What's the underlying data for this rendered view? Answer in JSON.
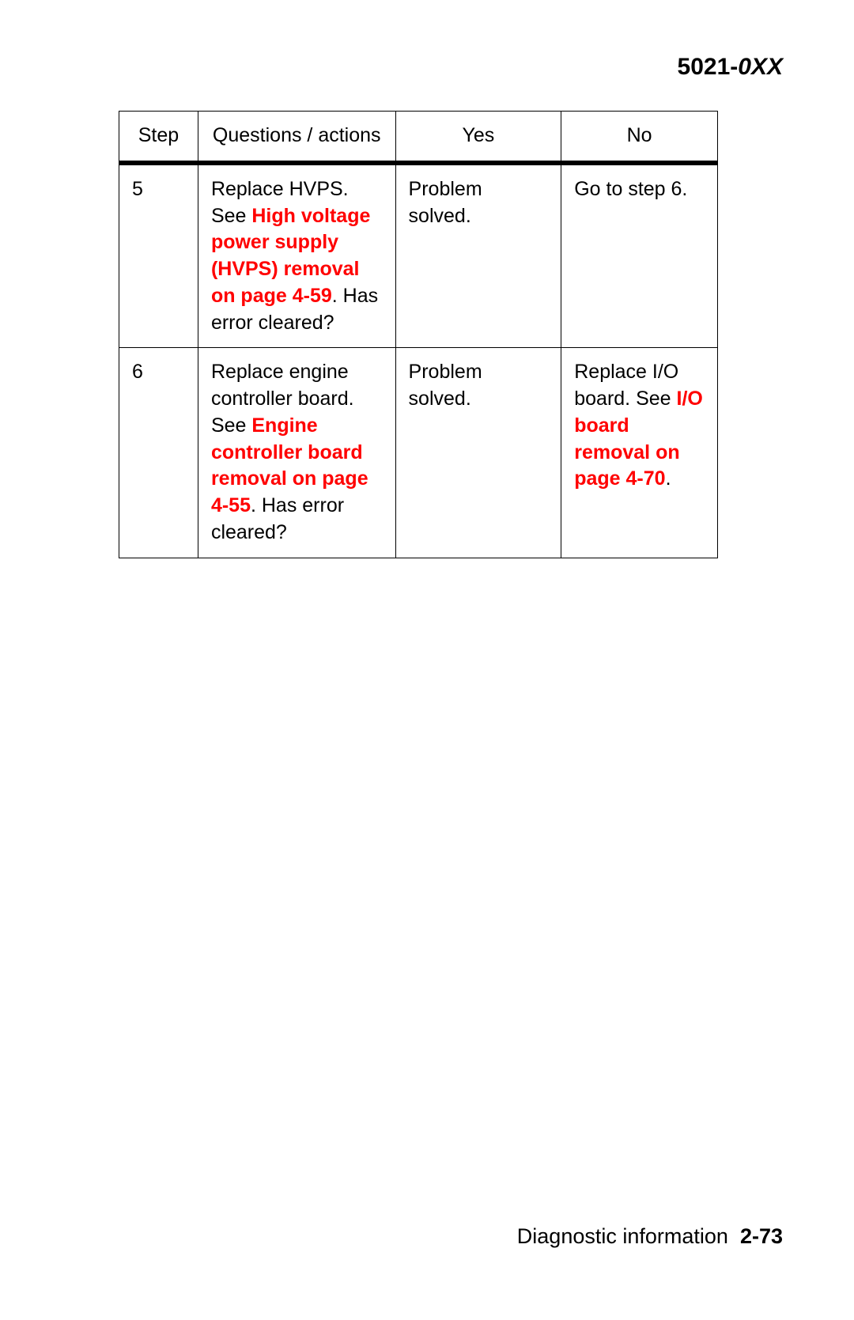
{
  "header": {
    "model_prefix": "5021-",
    "model_suffix": "0XX"
  },
  "table": {
    "columns": {
      "step": "Step",
      "qa": "Questions / actions",
      "yes": "Yes",
      "no": "No"
    },
    "rows": [
      {
        "step": "5",
        "qa_before": "Replace HVPS. See ",
        "qa_link": "High voltage power supply (HVPS) removal on page 4-59",
        "qa_after": ". Has error cleared?",
        "yes": "Problem solved.",
        "no_before": "Go to step 6.",
        "no_link": "",
        "no_after": ""
      },
      {
        "step": "6",
        "qa_before": "Replace engine controller board. See  ",
        "qa_link": "Engine controller board removal  on page 4-55",
        "qa_after": ". Has error cleared?",
        "yes": "Problem solved.",
        "no_before": "Replace I/O board. See  ",
        "no_link": "I/O board removal on page 4-70",
        "no_after": "."
      }
    ]
  },
  "footer": {
    "label": "Diagnostic information",
    "page": "2-73"
  }
}
